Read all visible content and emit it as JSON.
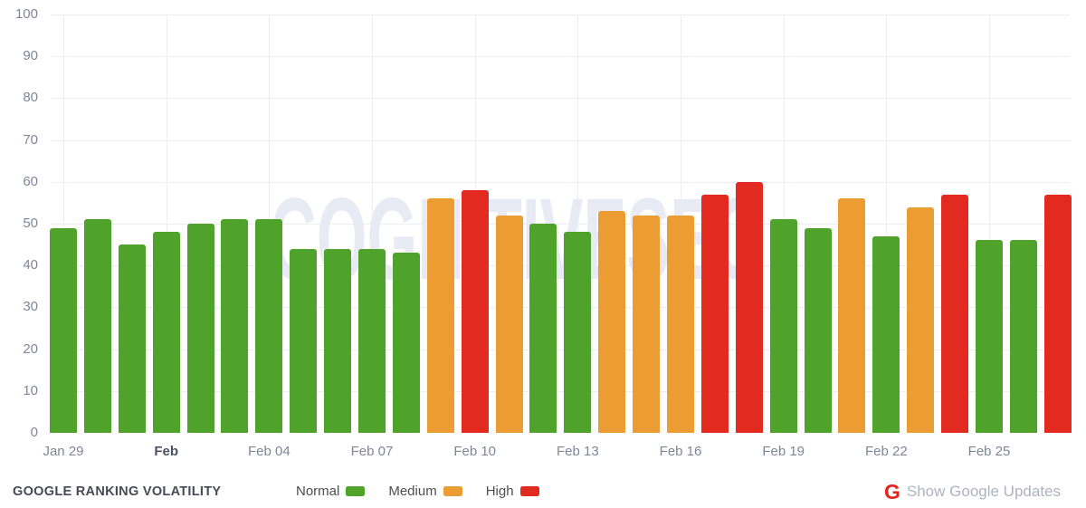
{
  "watermark": "COGNITIVESEO",
  "footer": {
    "title": "GOOGLE RANKING VOLATILITY",
    "google_updates": {
      "g_letter": "G",
      "label": "Show Google Updates"
    }
  },
  "legend": {
    "items": [
      {
        "label": "Normal",
        "level": "normal"
      },
      {
        "label": "Medium",
        "level": "medium"
      },
      {
        "label": "High",
        "level": "high"
      }
    ]
  },
  "chart_data": {
    "type": "bar",
    "title": "Google Ranking Volatility",
    "xlabel": "",
    "ylabel": "",
    "ylim": [
      0,
      100
    ],
    "ytick_step": 10,
    "grid": true,
    "legend_position": "bottom",
    "categories": [
      "Jan 29",
      "Jan 30",
      "Jan 31",
      "Feb 01",
      "Feb 02",
      "Feb 03",
      "Feb 04",
      "Feb 05",
      "Feb 06",
      "Feb 07",
      "Feb 08",
      "Feb 09",
      "Feb 10",
      "Feb 11",
      "Feb 12",
      "Feb 13",
      "Feb 14",
      "Feb 15",
      "Feb 16",
      "Feb 17",
      "Feb 18",
      "Feb 19",
      "Feb 20",
      "Feb 21",
      "Feb 22",
      "Feb 23",
      "Feb 24",
      "Feb 25",
      "Feb 26",
      "Feb 27"
    ],
    "values": [
      49,
      51,
      45,
      48,
      50,
      51,
      51,
      44,
      44,
      44,
      43,
      56,
      58,
      52,
      50,
      48,
      53,
      52,
      52,
      57,
      60,
      51,
      49,
      56,
      47,
      54,
      57,
      46,
      46,
      57
    ],
    "levels": [
      "normal",
      "normal",
      "normal",
      "normal",
      "normal",
      "normal",
      "normal",
      "normal",
      "normal",
      "normal",
      "normal",
      "medium",
      "high",
      "medium",
      "normal",
      "normal",
      "medium",
      "medium",
      "medium",
      "high",
      "high",
      "normal",
      "normal",
      "medium",
      "normal",
      "medium",
      "high",
      "normal",
      "normal",
      "high"
    ],
    "xticks": [
      {
        "index": 0,
        "label": "Jan 29"
      },
      {
        "index": 3,
        "label": "Feb",
        "bold": true
      },
      {
        "index": 6,
        "label": "Feb 04"
      },
      {
        "index": 9,
        "label": "Feb 07"
      },
      {
        "index": 12,
        "label": "Feb 10"
      },
      {
        "index": 15,
        "label": "Feb 13"
      },
      {
        "index": 18,
        "label": "Feb 16"
      },
      {
        "index": 21,
        "label": "Feb 19"
      },
      {
        "index": 24,
        "label": "Feb 22"
      },
      {
        "index": 27,
        "label": "Feb 25"
      }
    ],
    "colors": {
      "normal": "#4fa32b",
      "medium": "#eb9d33",
      "high": "#e22a20"
    }
  },
  "ui_colors": {
    "google_g_red": "#e4251c",
    "gridline": "#ededf4",
    "watermark": "#e9ebf4"
  }
}
